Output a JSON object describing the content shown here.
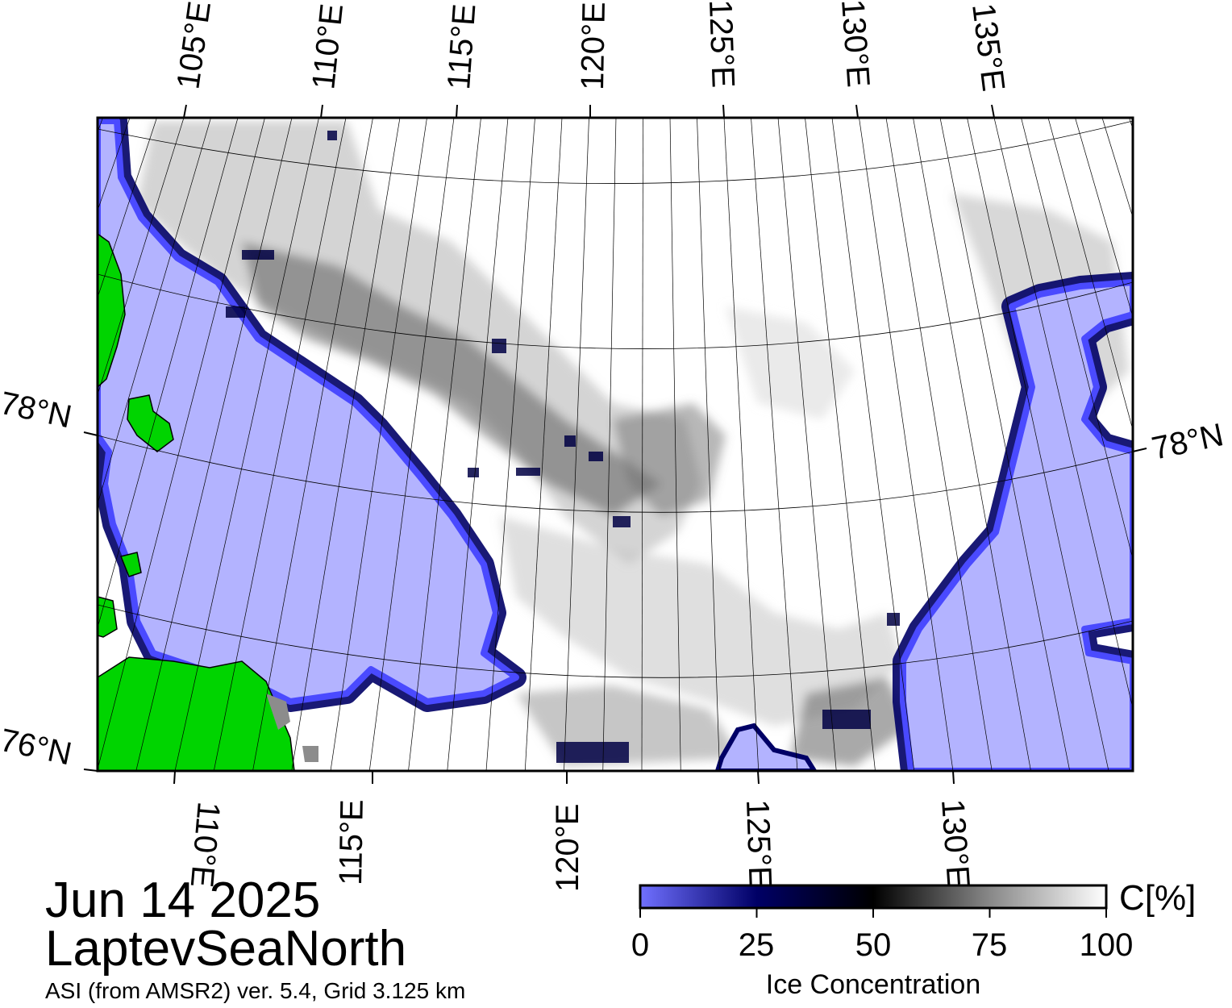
{
  "map": {
    "region": "LaptevSeaNorth",
    "date": "Jun 14 2025",
    "source": "ASI (from AMSR2) ver. 5.4,  Grid 3.125 km",
    "colors": {
      "land": "#00d400",
      "land_mask": "#8c8c8c",
      "open_water": "#b3b3ff",
      "ice_full": "#ffffff"
    },
    "top_lon_labels": [
      "105°E",
      "110°E",
      "115°E",
      "120°E",
      "125°E",
      "130°E",
      "135°E"
    ],
    "bottom_lon_labels": [
      "110°E",
      "115°E",
      "120°E",
      "125°E",
      "130°E"
    ],
    "left_lat_labels": [
      "78°N",
      "76°N"
    ],
    "right_lat_labels": [
      "78°N"
    ]
  },
  "colorbar": {
    "title": "Ice Concentration",
    "unit": "C[%]",
    "min": 0,
    "max": 100,
    "ticks": [
      "0",
      "25",
      "50",
      "75",
      "100"
    ],
    "stops": [
      {
        "value": 0,
        "color": "#7070ff"
      },
      {
        "value": 25,
        "color": "#000066"
      },
      {
        "value": 50,
        "color": "#000000"
      },
      {
        "value": 75,
        "color": "#888888"
      },
      {
        "value": 100,
        "color": "#ffffff"
      }
    ]
  }
}
